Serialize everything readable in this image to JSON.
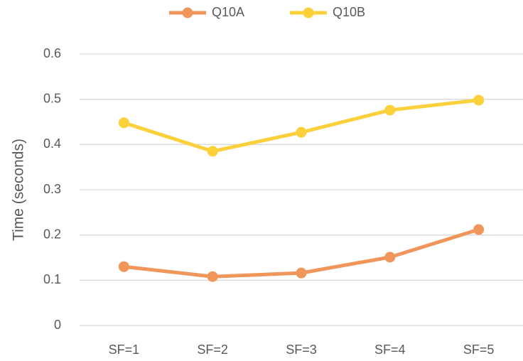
{
  "chart_data": {
    "type": "line",
    "categories": [
      "SF=1",
      "SF=2",
      "SF=3",
      "SF=4",
      "SF=5"
    ],
    "series": [
      {
        "name": "Q10A",
        "color": "#f0965a",
        "values": [
          0.13,
          0.108,
          0.116,
          0.151,
          0.212
        ]
      },
      {
        "name": "Q10B",
        "color": "#fcd03a",
        "values": [
          0.448,
          0.385,
          0.427,
          0.476,
          0.498
        ]
      }
    ],
    "ylabel": "Time (seconds)",
    "ylim": [
      0,
      0.6
    ],
    "yticks": [
      0,
      0.1,
      0.2,
      0.3,
      0.4,
      0.5,
      0.6
    ],
    "grid": true,
    "legend": "top"
  }
}
